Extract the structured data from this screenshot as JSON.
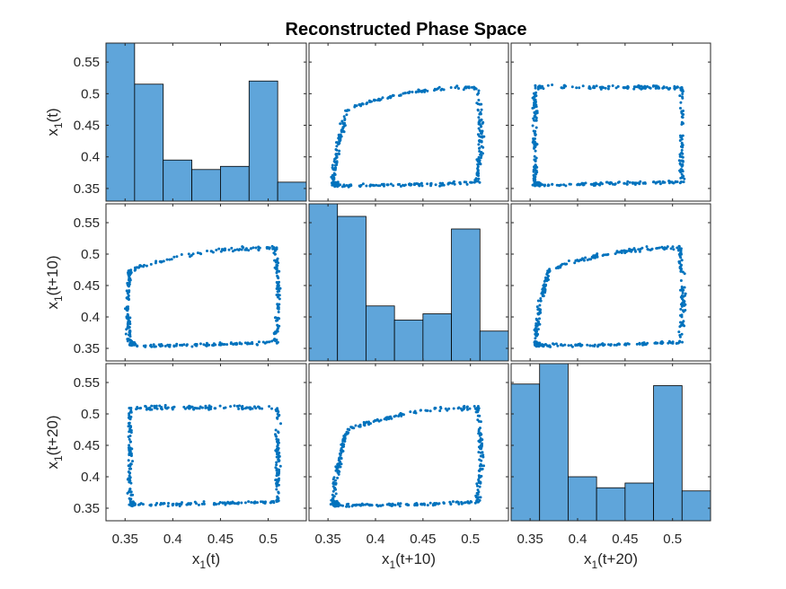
{
  "chart_data": {
    "type": "scatter",
    "title": "Reconstructed Phase Space",
    "variables": [
      "x_1(t)",
      "x_1(t+10)",
      "x_1(t+20)"
    ],
    "axis_labels": [
      {
        "base": "x",
        "sub": "1",
        "rest": "(t)"
      },
      {
        "base": "x",
        "sub": "1",
        "rest": "(t+10)"
      },
      {
        "base": "x",
        "sub": "1",
        "rest": "(t+20)"
      }
    ],
    "xlim": [
      0.33,
      0.54
    ],
    "ylim": [
      0.33,
      0.58
    ],
    "x_ticks": [
      0.35,
      0.4,
      0.45,
      0.5
    ],
    "x_tick_labels": [
      "0.35",
      "0.4",
      "0.45",
      "0.5"
    ],
    "y_ticks": [
      0.35,
      0.4,
      0.45,
      0.5,
      0.55
    ],
    "y_tick_labels": [
      "0.35",
      "0.4",
      "0.45",
      "0.5",
      "0.55"
    ],
    "colors": {
      "points": "#0072BD",
      "bars": "#5FA5DA",
      "bar_edge": "#000000"
    },
    "histograms": [
      {
        "variable": "x_1(t)",
        "bin_edges": [
          0.33,
          0.36,
          0.39,
          0.42,
          0.45,
          0.48,
          0.51,
          0.54
        ],
        "relative_heights": [
          1.0,
          0.74,
          0.26,
          0.2,
          0.22,
          0.76,
          0.12
        ]
      },
      {
        "variable": "x_1(t+10)",
        "bin_edges": [
          0.33,
          0.36,
          0.39,
          0.42,
          0.45,
          0.48,
          0.51,
          0.54
        ],
        "relative_heights": [
          1.0,
          0.92,
          0.35,
          0.26,
          0.3,
          0.84,
          0.19
        ]
      },
      {
        "variable": "x_1(t+20)",
        "bin_edges": [
          0.33,
          0.36,
          0.39,
          0.42,
          0.45,
          0.48,
          0.51,
          0.54
        ],
        "relative_heights": [
          0.87,
          1.0,
          0.28,
          0.21,
          0.24,
          0.86,
          0.19
        ]
      }
    ],
    "scatter_panels": [
      {
        "row": 0,
        "col": 1,
        "x": "x_1(t+10)",
        "y": "x_1(t)",
        "shape": "leaf",
        "bottom_left": [
          0.355,
          0.355
        ],
        "bottom_right": [
          0.51,
          0.36
        ],
        "top_right": [
          0.51,
          0.51
        ],
        "top_left": [
          0.37,
          0.475
        ]
      },
      {
        "row": 0,
        "col": 2,
        "x": "x_1(t+20)",
        "y": "x_1(t)",
        "shape": "rectangle",
        "bottom_left": [
          0.355,
          0.355
        ],
        "bottom_right": [
          0.51,
          0.36
        ],
        "top_right": [
          0.51,
          0.51
        ],
        "top_left": [
          0.355,
          0.51
        ]
      },
      {
        "row": 1,
        "col": 0,
        "x": "x_1(t)",
        "y": "x_1(t+10)",
        "shape": "leaf",
        "bottom_left": [
          0.355,
          0.355
        ],
        "bottom_right": [
          0.51,
          0.36
        ],
        "top_right": [
          0.51,
          0.51
        ],
        "top_left": [
          0.355,
          0.475
        ]
      },
      {
        "row": 1,
        "col": 2,
        "x": "x_1(t+20)",
        "y": "x_1(t+10)",
        "shape": "leaf",
        "bottom_left": [
          0.355,
          0.355
        ],
        "bottom_right": [
          0.51,
          0.36
        ],
        "top_right": [
          0.51,
          0.51
        ],
        "top_left": [
          0.37,
          0.475
        ]
      },
      {
        "row": 2,
        "col": 0,
        "x": "x_1(t)",
        "y": "x_1(t+20)",
        "shape": "rectangle",
        "bottom_left": [
          0.355,
          0.355
        ],
        "bottom_right": [
          0.51,
          0.36
        ],
        "top_right": [
          0.51,
          0.51
        ],
        "top_left": [
          0.355,
          0.51
        ]
      },
      {
        "row": 2,
        "col": 1,
        "x": "x_1(t+10)",
        "y": "x_1(t+20)",
        "shape": "leaf",
        "bottom_left": [
          0.355,
          0.355
        ],
        "bottom_right": [
          0.51,
          0.36
        ],
        "top_right": [
          0.51,
          0.51
        ],
        "top_left": [
          0.37,
          0.475
        ]
      }
    ],
    "grid": false,
    "legend": "none"
  }
}
